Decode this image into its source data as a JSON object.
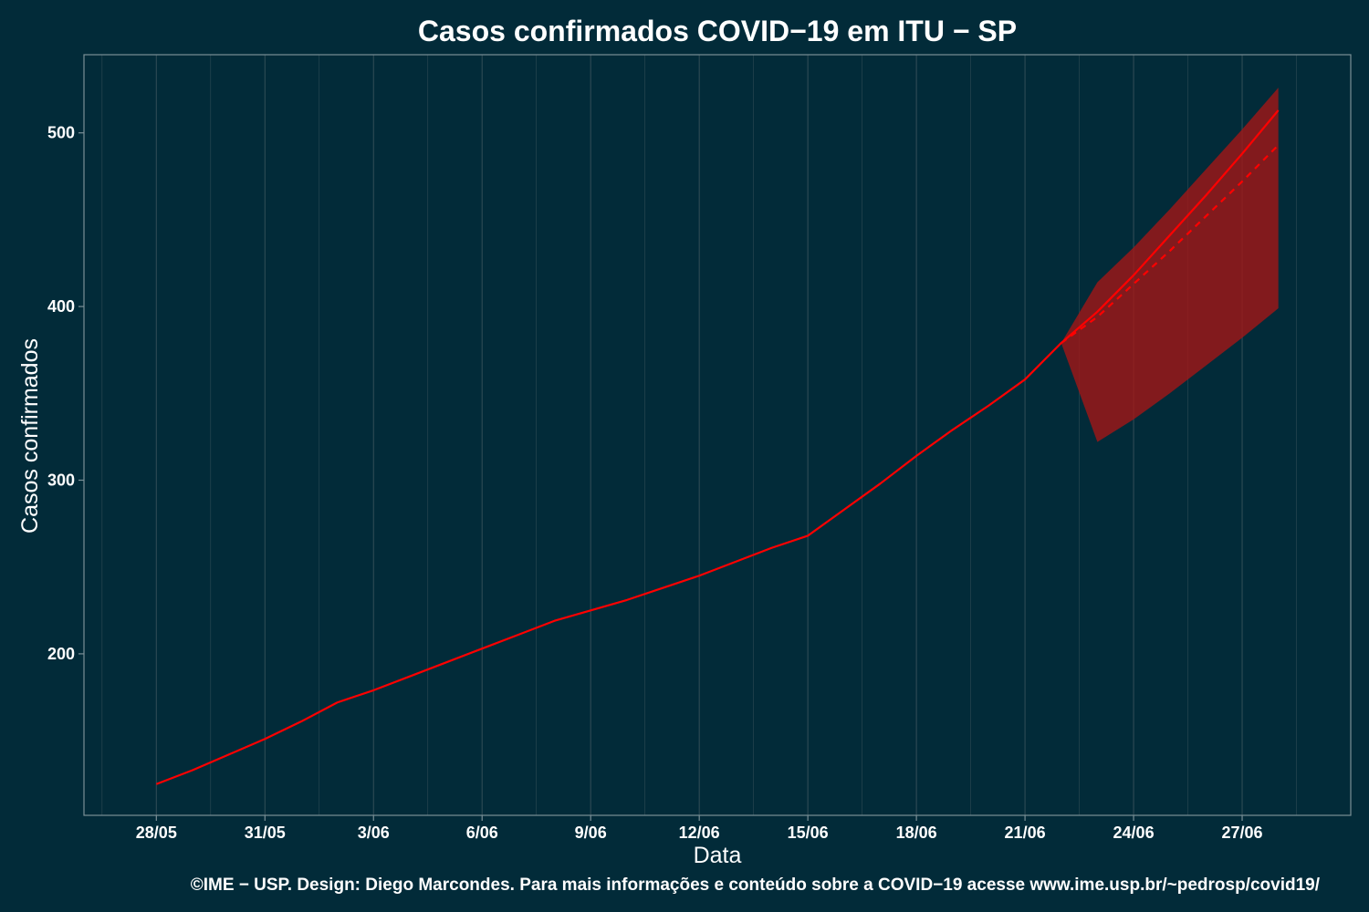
{
  "colors": {
    "background": "#022b39",
    "grid": "#2f4b55",
    "panel_border": "#7a8f96",
    "series": "#ff0000",
    "band": "#a31616",
    "text": "#ffffff"
  },
  "chart_data": {
    "type": "line",
    "title": "Casos confirmados COVID−19 em ITU − SP",
    "xlabel": "Data",
    "ylabel": "Casos confirmados",
    "caption": "©IME − USP. Design: Diego Marcondes. Para mais informações e conteúdo sobre a COVID−19 acesse www.ime.usp.br/~pedrosp/covid19/",
    "x_range": [
      "2020-05-26",
      "2020-06-30"
    ],
    "ylim": [
      107,
      545
    ],
    "x_ticks": [
      {
        "date": "2020-05-28",
        "label": "28/05"
      },
      {
        "date": "2020-05-31",
        "label": "31/05"
      },
      {
        "date": "2020-06-03",
        "label": "3/06"
      },
      {
        "date": "2020-06-06",
        "label": "6/06"
      },
      {
        "date": "2020-06-09",
        "label": "9/06"
      },
      {
        "date": "2020-06-12",
        "label": "12/06"
      },
      {
        "date": "2020-06-15",
        "label": "15/06"
      },
      {
        "date": "2020-06-18",
        "label": "18/06"
      },
      {
        "date": "2020-06-21",
        "label": "21/06"
      },
      {
        "date": "2020-06-24",
        "label": "24/06"
      },
      {
        "date": "2020-06-27",
        "label": "27/06"
      }
    ],
    "y_ticks": [
      200,
      300,
      400,
      500
    ],
    "grid": true,
    "series": [
      {
        "style": "solid",
        "x": [
          "2020-05-28",
          "2020-05-29",
          "2020-05-30",
          "2020-05-31",
          "2020-06-01",
          "2020-06-02",
          "2020-06-03",
          "2020-06-04",
          "2020-06-05",
          "2020-06-06",
          "2020-06-07",
          "2020-06-08",
          "2020-06-09",
          "2020-06-10",
          "2020-06-11",
          "2020-06-12",
          "2020-06-13",
          "2020-06-14",
          "2020-06-15",
          "2020-06-16",
          "2020-06-17",
          "2020-06-18",
          "2020-06-19",
          "2020-06-20",
          "2020-06-21",
          "2020-06-22",
          "2020-06-23",
          "2020-06-24",
          "2020-06-25",
          "2020-06-26",
          "2020-06-27",
          "2020-06-28"
        ],
        "y": [
          125,
          133,
          142,
          151,
          161,
          172,
          179,
          187,
          195,
          203,
          211,
          219,
          225,
          231,
          238,
          245,
          253,
          261,
          268,
          283,
          298,
          314,
          329,
          343,
          358,
          379,
          397,
          418,
          441,
          464,
          488,
          513
        ]
      },
      {
        "style": "dashed",
        "x": [
          "2020-06-22",
          "2020-06-23",
          "2020-06-24",
          "2020-06-25",
          "2020-06-26",
          "2020-06-27",
          "2020-06-28"
        ],
        "y": [
          379,
          394,
          413,
          432,
          452,
          472,
          493
        ]
      }
    ],
    "band": {
      "x": [
        "2020-06-22",
        "2020-06-23",
        "2020-06-24",
        "2020-06-25",
        "2020-06-26",
        "2020-06-27",
        "2020-06-28"
      ],
      "upper": [
        379,
        414,
        434,
        456,
        479,
        502,
        526
      ],
      "lower": [
        379,
        322,
        335,
        350,
        366,
        382,
        399
      ]
    }
  }
}
